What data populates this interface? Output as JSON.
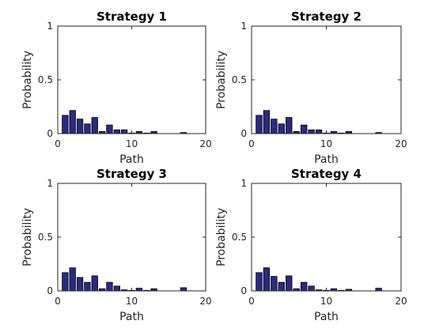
{
  "chart_data": [
    {
      "type": "bar",
      "title": "Strategy 1",
      "xlabel": "Path",
      "ylabel": "Probability",
      "xlim": [
        0,
        20
      ],
      "ylim": [
        0,
        1
      ],
      "xticks": [
        "0",
        "10",
        "20"
      ],
      "yticks": [
        "0",
        "0.5",
        "1"
      ],
      "grid": false,
      "color": "#2b2a80",
      "x": [
        1,
        2,
        3,
        4,
        5,
        6,
        7,
        8,
        9,
        10,
        11,
        12,
        13,
        14,
        15,
        16,
        17,
        18,
        19
      ],
      "values": [
        0.17,
        0.215,
        0.135,
        0.09,
        0.15,
        0.02,
        0.08,
        0.035,
        0.035,
        0.005,
        0.02,
        0.005,
        0.02,
        0.0,
        0.0,
        0.0,
        0.01,
        0.0,
        0.0
      ]
    },
    {
      "type": "bar",
      "title": "Strategy 2",
      "xlabel": "Path",
      "ylabel": "Probability",
      "xlim": [
        0,
        20
      ],
      "ylim": [
        0,
        1
      ],
      "xticks": [
        "0",
        "10",
        "20"
      ],
      "yticks": [
        "0",
        "0.5",
        "1"
      ],
      "grid": false,
      "color": "#2b2a80",
      "x": [
        1,
        2,
        3,
        4,
        5,
        6,
        7,
        8,
        9,
        10,
        11,
        12,
        13,
        14,
        15,
        16,
        17,
        18,
        19
      ],
      "values": [
        0.17,
        0.215,
        0.135,
        0.09,
        0.15,
        0.02,
        0.08,
        0.035,
        0.035,
        0.005,
        0.02,
        0.005,
        0.02,
        0.0,
        0.0,
        0.0,
        0.01,
        0.0,
        0.0
      ]
    },
    {
      "type": "bar",
      "title": "Strategy 3",
      "xlabel": "Path",
      "ylabel": "Probability",
      "xlim": [
        0,
        20
      ],
      "ylim": [
        0,
        1
      ],
      "xticks": [
        "0",
        "10",
        "20"
      ],
      "yticks": [
        "0",
        "0.5",
        "1"
      ],
      "grid": false,
      "color": "#2b2a80",
      "x": [
        1,
        2,
        3,
        4,
        5,
        6,
        7,
        8,
        9,
        10,
        11,
        12,
        13,
        14,
        15,
        16,
        17,
        18,
        19
      ],
      "values": [
        0.17,
        0.215,
        0.125,
        0.08,
        0.14,
        0.02,
        0.08,
        0.045,
        0.01,
        0.005,
        0.025,
        0.005,
        0.02,
        0.0,
        0.0,
        0.0,
        0.03,
        0.0,
        0.0
      ]
    },
    {
      "type": "bar",
      "title": "Strategy 4",
      "xlabel": "Path",
      "ylabel": "Probability",
      "xlim": [
        0,
        20
      ],
      "ylim": [
        0,
        1
      ],
      "xticks": [
        "0",
        "10",
        "20"
      ],
      "yticks": [
        "0",
        "0.5",
        "1"
      ],
      "grid": false,
      "color": "#2b2a80",
      "x": [
        1,
        2,
        3,
        4,
        5,
        6,
        7,
        8,
        9,
        10,
        11,
        12,
        13,
        14,
        15,
        16,
        17,
        18,
        19
      ],
      "values": [
        0.17,
        0.215,
        0.135,
        0.08,
        0.14,
        0.02,
        0.08,
        0.045,
        0.01,
        0.005,
        0.02,
        0.005,
        0.015,
        0.0,
        0.0,
        0.0,
        0.025,
        0.0,
        0.0
      ]
    }
  ]
}
